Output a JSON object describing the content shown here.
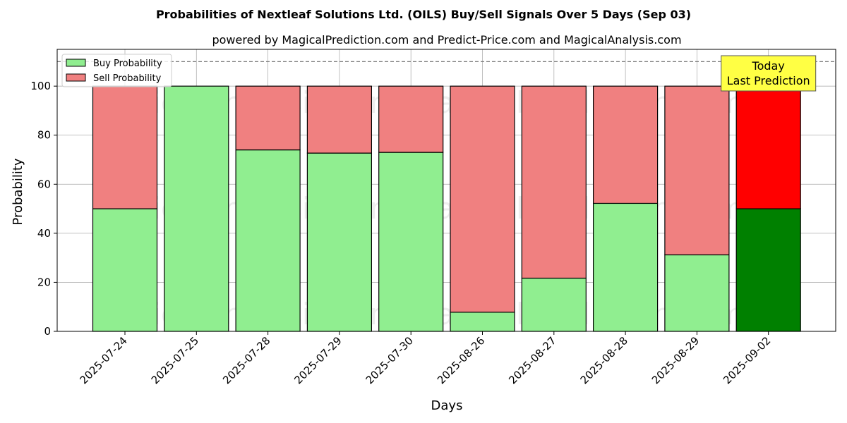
{
  "chart_data": {
    "type": "bar",
    "stacked": true,
    "title": "Probabilities of Nextleaf Solutions Ltd. (OILS) Buy/Sell Signals Over 5 Days (Sep 03)",
    "subtitle": "powered by MagicalPrediction.com and Predict-Price.com and MagicalAnalysis.com",
    "xlabel": "Days",
    "ylabel": "Probability",
    "ylim": [
      0,
      115
    ],
    "yticks": [
      0,
      20,
      40,
      60,
      80,
      100
    ],
    "grid": true,
    "legend_position": "top-left",
    "reference_line": 110,
    "categories": [
      "2025-07-24",
      "2025-07-25",
      "2025-07-28",
      "2025-07-29",
      "2025-07-30",
      "2025-08-26",
      "2025-08-27",
      "2025-08-28",
      "2025-08-29",
      "2025-09-02"
    ],
    "series": [
      {
        "name": "Buy Probability",
        "color": "#90EE90",
        "values": [
          50,
          100,
          74,
          72.7,
          73,
          7.8,
          21.7,
          52.2,
          31.2,
          50
        ]
      },
      {
        "name": "Sell Probability",
        "color": "#F08080",
        "values": [
          50,
          0,
          26,
          27.3,
          27,
          92.2,
          78.3,
          47.8,
          68.8,
          50
        ]
      }
    ],
    "highlight": {
      "index": 9,
      "buy_color": "#008000",
      "sell_color": "#FF0000"
    },
    "annotation": {
      "lines": [
        "Today",
        "Last Prediction"
      ],
      "color": "#FFFF44"
    },
    "watermarks": [
      "MagicalAnalysis.com",
      "MagicalPrediction.com"
    ]
  }
}
